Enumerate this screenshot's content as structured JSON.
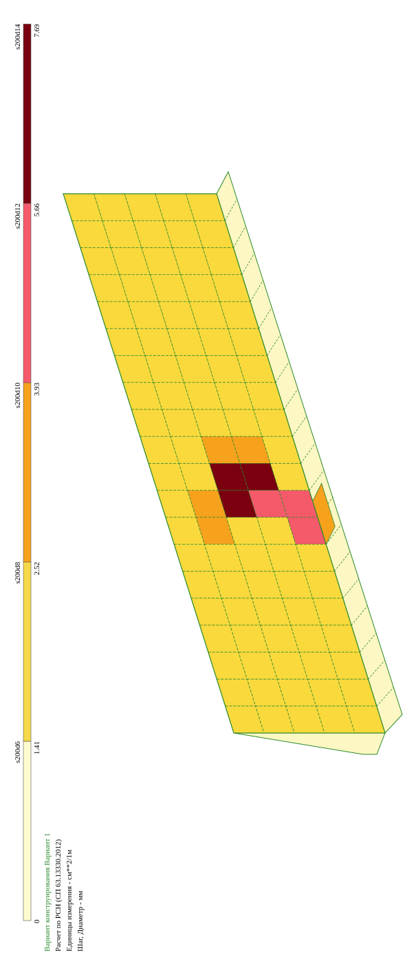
{
  "legend": {
    "marks": [
      0,
      1.41,
      2.52,
      3.93,
      5.66,
      7.69
    ],
    "steps": [
      "s200d6",
      "s200d8",
      "s200d10",
      "s200d12",
      "s200d14"
    ]
  },
  "info": {
    "title": "Вариант конструирования Вариант 1",
    "lines": [
      "Расчет по РСН (СП 63.13330.2012)",
      "Единицы измерения - см**2/1м",
      "Шаг, Диаметр - мм"
    ]
  }
}
